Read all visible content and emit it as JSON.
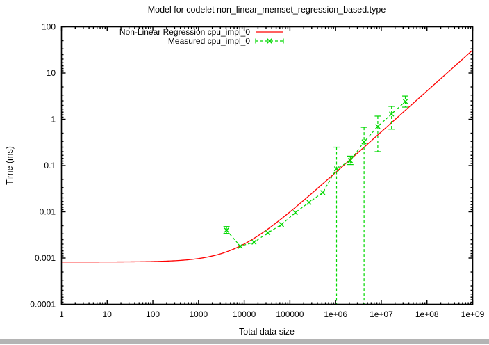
{
  "window": {
    "background_color": "#ffffff",
    "bottom_bar_color": "#b4b4b4"
  },
  "chart_data": {
    "type": "line",
    "title": "Model for codelet non_linear_memset_regression_based.type",
    "xlabel": "Total data size",
    "ylabel": "Time (ms)",
    "x_scale": "log",
    "y_scale": "log",
    "xlim": [
      1,
      1000000000
    ],
    "ylim": [
      0.0001,
      100
    ],
    "x_tick_labels": [
      "1",
      "10",
      "100",
      "1000",
      "10000",
      "100000",
      "1e+06",
      "1e+07",
      "1e+08",
      "1e+09"
    ],
    "y_tick_labels": [
      "100",
      "10",
      "1",
      "0.1",
      "0.01",
      "0.001",
      "0.0001"
    ],
    "grid": false,
    "legend_position": "inside-top-center",
    "axis_color": "#000000",
    "series": [
      {
        "name": "Non-Linear Regression cpu_impl_0",
        "kind": "model-curve",
        "color": "#ff0000",
        "line_style": "solid",
        "formula": "y = a + b * x^c",
        "params": {
          "a": 0.00082,
          "b": 3.47e-07,
          "c": 0.884
        }
      },
      {
        "name": "Measured cpu_impl_0",
        "kind": "points-with-errorbars",
        "color": "#00d800",
        "line_style": "dashed",
        "marker": "x",
        "points": [
          {
            "x": 4096,
            "y": 0.004,
            "y_low": 0.0034,
            "y_high": 0.0048
          },
          {
            "x": 8192,
            "y": 0.0018
          },
          {
            "x": 16384,
            "y": 0.0022
          },
          {
            "x": 32768,
            "y": 0.0035
          },
          {
            "x": 65536,
            "y": 0.0053
          },
          {
            "x": 131072,
            "y": 0.0096
          },
          {
            "x": 262144,
            "y": 0.016
          },
          {
            "x": 524288,
            "y": 0.026
          },
          {
            "x": 1048576,
            "y": 0.085,
            "y_low": 5e-05,
            "y_high": 0.25
          },
          {
            "x": 2097152,
            "y": 0.128,
            "y_low": 0.105,
            "y_high": 0.16
          },
          {
            "x": 4194304,
            "y": 0.325,
            "y_low": 5e-05,
            "y_high": 0.67
          },
          {
            "x": 8388608,
            "y": 0.7,
            "y_low": 0.2,
            "y_high": 1.17
          },
          {
            "x": 16777216,
            "y": 1.3,
            "y_low": 0.61,
            "y_high": 1.9
          },
          {
            "x": 33554432,
            "y": 2.42,
            "y_low": 1.83,
            "y_high": 3.18
          }
        ]
      }
    ]
  }
}
